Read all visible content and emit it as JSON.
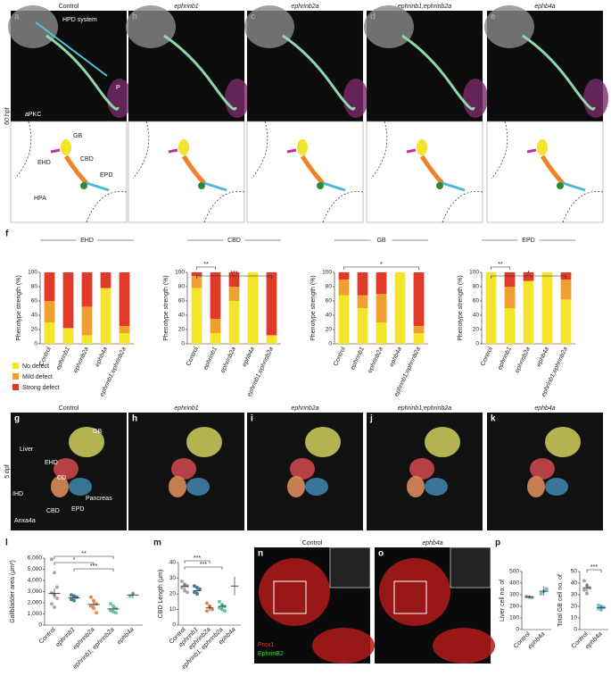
{
  "figure": {
    "row_labels": [
      "60 hpf",
      "5 dpf"
    ],
    "panels": [
      {
        "letter": "a",
        "title": "Control",
        "labels": [
          "HPD system",
          "P",
          "aPKC"
        ],
        "drawing_labels": [
          "GB",
          "CBD",
          "EHD",
          "EPD",
          "HPA"
        ]
      },
      {
        "letter": "b",
        "title": "ephrinb1"
      },
      {
        "letter": "c",
        "title": "ephrinb2a"
      },
      {
        "letter": "d",
        "title": "ephrinb1;ephrinb2a"
      },
      {
        "letter": "e",
        "title": "ephb4a"
      },
      {
        "letter": "g",
        "title": "Control",
        "labels": [
          "Liver",
          "GB",
          "EHD",
          "CD",
          "IHD",
          "CBD",
          "EPD",
          "Pancreas",
          "Anxa4a"
        ]
      },
      {
        "letter": "h",
        "title": "ephrinb1"
      },
      {
        "letter": "i",
        "title": "ephrinb2a"
      },
      {
        "letter": "j",
        "title": "ephrinb1;ephrinb2a"
      },
      {
        "letter": "k",
        "title": "ephb4a"
      },
      {
        "letter": "n",
        "title": "Control",
        "labels": [
          "Prox1",
          "EphrinB2"
        ]
      },
      {
        "letter": "o",
        "title": "ephb4a"
      }
    ],
    "chart_letters": [
      "f",
      "l",
      "m",
      "p"
    ]
  },
  "chart_data": [
    {
      "type": "bar",
      "stacked": true,
      "title": "EHD",
      "ylabel": "Phenotype strength (%)",
      "categories": [
        "Control",
        "ephrinb1",
        "ephrinb2a",
        "ephb4a",
        "ephrinb1;ephrinb2a"
      ],
      "ylim": [
        0,
        100
      ],
      "yticks": [
        0,
        20,
        40,
        60,
        80,
        100
      ],
      "series": [
        {
          "name": "No defect",
          "color": "#f5e52a",
          "values": [
            30,
            22,
            12,
            78,
            15
          ]
        },
        {
          "name": "Mild defect",
          "color": "#f0a030",
          "values": [
            30,
            0,
            40,
            0,
            10
          ]
        },
        {
          "name": "Strong defect",
          "color": "#e23a2a",
          "values": [
            40,
            78,
            48,
            22,
            75
          ]
        }
      ],
      "annotations": []
    },
    {
      "type": "bar",
      "stacked": true,
      "title": "CBD",
      "ylabel": "Phenotype strength (%)",
      "categories": [
        "Control",
        "ephrinb1",
        "ephrinb2a",
        "ephb4a",
        "ephrinb1;ephrinb2a"
      ],
      "ylim": [
        0,
        100
      ],
      "yticks": [
        0,
        20,
        40,
        60,
        80,
        100
      ],
      "series": [
        {
          "name": "No defect",
          "color": "#f5e52a",
          "values": [
            78,
            15,
            60,
            100,
            12
          ]
        },
        {
          "name": "Mild defect",
          "color": "#f0a030",
          "values": [
            17,
            20,
            20,
            0,
            0
          ]
        },
        {
          "name": "Strong defect",
          "color": "#e23a2a",
          "values": [
            5,
            65,
            20,
            0,
            88
          ]
        }
      ],
      "annotations": [
        {
          "label": "**",
          "between": [
            "Control",
            "ephrinb1"
          ]
        },
        {
          "label": "***",
          "between": [
            "Control",
            "ephrinb1;ephrinb2a"
          ]
        }
      ]
    },
    {
      "type": "bar",
      "stacked": true,
      "title": "GB",
      "ylabel": "Phenotype strength (%)",
      "categories": [
        "Control",
        "ephrinb1",
        "ephrinb2a",
        "ephb4a",
        "ephrinb1;ephrinb2a"
      ],
      "ylim": [
        0,
        100
      ],
      "yticks": [
        0,
        20,
        40,
        60,
        80,
        100
      ],
      "series": [
        {
          "name": "No defect",
          "color": "#f5e52a",
          "values": [
            68,
            50,
            30,
            100,
            15
          ]
        },
        {
          "name": "Mild defect",
          "color": "#f0a030",
          "values": [
            22,
            18,
            40,
            0,
            10
          ]
        },
        {
          "name": "Strong defect",
          "color": "#e23a2a",
          "values": [
            10,
            32,
            30,
            0,
            75
          ]
        }
      ],
      "annotations": [
        {
          "label": "*",
          "between": [
            "Control",
            "ephrinb1;ephrinb2a"
          ]
        }
      ]
    },
    {
      "type": "bar",
      "stacked": true,
      "title": "EPD",
      "ylabel": "Phenotype strength (%)",
      "categories": [
        "Control",
        "ephrinb1",
        "ephrinb2a",
        "ephb4a",
        "ephrinb1;ephrinb2a"
      ],
      "ylim": [
        0,
        100
      ],
      "yticks": [
        0,
        20,
        40,
        60,
        80,
        100
      ],
      "series": [
        {
          "name": "No defect",
          "color": "#f5e52a",
          "values": [
            100,
            50,
            88,
            100,
            62
          ]
        },
        {
          "name": "Mild defect",
          "color": "#f0a030",
          "values": [
            0,
            30,
            0,
            0,
            28
          ]
        },
        {
          "name": "Strong defect",
          "color": "#e23a2a",
          "values": [
            0,
            20,
            12,
            0,
            10
          ]
        }
      ],
      "annotations": [
        {
          "label": "**",
          "between": [
            "Control",
            "ephrinb1"
          ]
        },
        {
          "label": "*",
          "between": [
            "Control",
            "ephrinb1;ephrinb2a"
          ]
        }
      ]
    },
    {
      "type": "dot",
      "ylabel": "Gallbladder area (µm²)",
      "categories": [
        "Control",
        "ephrinb1",
        "ephrinb2a",
        "ephrinb1; ephrinb2a",
        "ephb4a"
      ],
      "colors": [
        "#999999",
        "#1f6f8f",
        "#e8762a",
        "#4fbf8f",
        "#59b9c9"
      ],
      "points": [
        [
          5900,
          4700,
          3400,
          2900,
          2700,
          2400,
          1900,
          1600
        ],
        [
          2700,
          2600,
          2500,
          2300,
          2200
        ],
        [
          2500,
          2200,
          1900,
          1700,
          1500,
          1100
        ],
        [
          1900,
          1700,
          1500,
          1300,
          1200,
          1100
        ],
        [
          2600,
          2800
        ]
      ],
      "values": [
        2850,
        2450,
        1850,
        1450,
        2700
      ],
      "errors": [
        450,
        150,
        250,
        150,
        300
      ],
      "ylim": [
        0,
        6000
      ],
      "yticks": [
        0,
        {
          "value": 1000,
          "label": "1,000"
        },
        {
          "value": 2000,
          "label": "2,000"
        },
        {
          "value": 3000,
          "label": "3,000"
        },
        {
          "value": 4000,
          "label": "4,000"
        },
        {
          "value": 5000,
          "label": "5,000"
        },
        {
          "value": 6000,
          "label": "6,000"
        }
      ],
      "annotations": [
        {
          "label": "**",
          "between": [
            "Control",
            "ephrinb1; ephrinb2a"
          ]
        },
        {
          "label": "*",
          "between": [
            "Control",
            "ephrinb2a"
          ]
        },
        {
          "label": "***",
          "between": [
            "ephrinb1",
            "ephrinb1; ephrinb2a"
          ]
        }
      ]
    },
    {
      "type": "dot",
      "ylabel": "CBD Length (µm)",
      "categories": [
        "Control",
        "ephrinb1",
        "ephrinb2a",
        "ephrinb1; ephrinb2a",
        "ephb4a"
      ],
      "colors": [
        "#999999",
        "#1f6f8f",
        "#e8762a",
        "#4fbf8f",
        "#59b9c9"
      ],
      "points": [
        [
          28,
          26,
          25,
          24,
          22,
          21
        ],
        [
          25,
          24,
          23,
          21,
          20
        ],
        [
          14,
          12,
          10,
          9
        ],
        [
          15,
          13,
          12,
          11,
          10,
          9
        ],
        []
      ],
      "values": [
        25,
        22,
        11,
        12,
        25
      ],
      "errors": [
        2,
        1.5,
        2,
        1.5,
        6
      ],
      "ylim": [
        0,
        40
      ],
      "yticks": [
        0,
        10,
        20,
        30,
        40
      ],
      "annotations": [
        {
          "label": "***",
          "between": [
            "Control",
            "ephrinb2a"
          ]
        },
        {
          "label": "***",
          "between": [
            "Control",
            "ephrinb1; ephrinb2a"
          ]
        }
      ]
    },
    {
      "type": "dot",
      "ylabel": "Liver cell no. of",
      "categories": [
        "Control",
        "ephb4a"
      ],
      "colors": [
        "#999999",
        "#59b9c9"
      ],
      "points": [
        [
          285,
          280,
          275
        ],
        [
          310,
          330,
          350
        ]
      ],
      "values": [
        280,
        330
      ],
      "errors": [
        10,
        40
      ],
      "ylim": [
        0,
        500
      ],
      "yticks": [
        0,
        100,
        200,
        300,
        400,
        500
      ],
      "annotations": []
    },
    {
      "type": "dot",
      "ylabel": "Total GB cell no. of",
      "categories": [
        "Control",
        "ephb4a"
      ],
      "colors": [
        "#999999",
        "#59b9c9"
      ],
      "points": [
        [
          42,
          38,
          36,
          34,
          31
        ],
        [
          21,
          20,
          19,
          18,
          17
        ]
      ],
      "values": [
        36,
        19
      ],
      "errors": [
        4,
        1.5
      ],
      "ylim": [
        0,
        50
      ],
      "yticks": [
        0,
        10,
        20,
        30,
        40,
        50
      ],
      "annotations": [
        {
          "label": "***",
          "between": [
            "Control",
            "ephb4a"
          ]
        }
      ]
    }
  ]
}
